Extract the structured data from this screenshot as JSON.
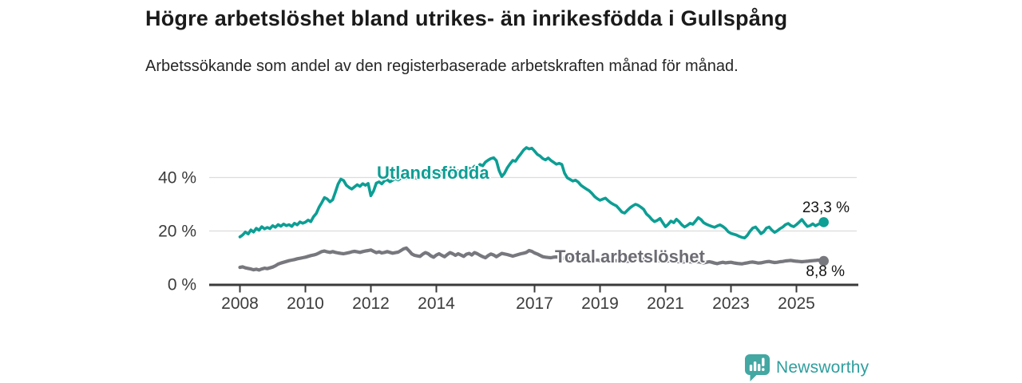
{
  "page": {
    "title": "Högre arbetslöshet bland utrikes- än inrikesfödda i Gullspång",
    "subtitle": "Arbetssökande som andel av den registerbaserade arbetskraften månad för månad."
  },
  "branding": {
    "name": "Newsworthy",
    "icon": "bar-chart-speech-bubble-icon",
    "icon_color": "#43a7a2",
    "text_color": "#2f9e9e"
  },
  "colors": {
    "foreign_born_line": "#0d9e94",
    "total_line": "#77777e",
    "grid": "#dcdcdc",
    "axis": "#3a3a3a",
    "axis_text": "#3c3c3c",
    "value_text": "#141414"
  },
  "chart_data": {
    "type": "line",
    "title": "Högre arbetslöshet bland utrikes- än inrikesfödda i Gullspång",
    "subtitle": "Arbetssökande som andel av den registerbaserade arbetskraften månad för månad.",
    "unit": "%",
    "grid": "horizontal",
    "legend_position": "inline-labels",
    "x_axis": {
      "range": [
        2007.06,
        2026.86
      ],
      "ticks": [
        2008,
        2010,
        2012,
        2014,
        2017,
        2019,
        2021,
        2023,
        2025
      ]
    },
    "y_axis": {
      "range": [
        0,
        53
      ],
      "ticks": [
        {
          "value": 0,
          "label": "0 %"
        },
        {
          "value": 20,
          "label": "20 %"
        },
        {
          "value": 40,
          "label": "40 %"
        }
      ]
    },
    "series": [
      {
        "name": "Utlandsfödda",
        "color": "#0d9e94",
        "start_year": 2008.0,
        "interval": "monthly",
        "end_value": 23.3,
        "end_label": "23,3 %",
        "values": [
          17.8,
          18.5,
          19.6,
          18.9,
          20.4,
          19.6,
          21.0,
          20.3,
          21.6,
          20.8,
          21.3,
          20.9,
          22.0,
          21.4,
          22.4,
          21.8,
          22.6,
          22.0,
          22.4,
          21.7,
          22.9,
          22.3,
          23.4,
          22.9,
          23.3,
          24.1,
          23.5,
          25.4,
          26.6,
          28.9,
          30.6,
          32.5,
          32.0,
          30.9,
          31.7,
          34.6,
          37.6,
          39.4,
          38.9,
          37.1,
          36.3,
          35.7,
          36.5,
          37.3,
          36.7,
          37.7,
          37.1,
          37.8,
          33.2,
          35.0,
          37.9,
          38.4,
          37.6,
          38.8,
          39.2,
          38.4,
          39.0,
          39.6,
          39.1,
          39.8,
          40.4,
          39.7,
          40.2,
          40.9,
          40.1,
          39.6,
          40.9,
          41.4,
          40.8,
          41.5,
          40.9,
          41.3,
          41.8,
          41.2,
          41.9,
          41.4,
          42.0,
          41.6,
          42.3,
          41.8,
          42.5,
          42.1,
          43.0,
          42.6,
          43.5,
          43.0,
          44.2,
          43.7,
          44.9,
          44.4,
          45.8,
          46.5,
          47.1,
          47.4,
          46.3,
          42.6,
          40.4,
          41.6,
          43.6,
          45.1,
          46.4,
          46.1,
          47.6,
          48.9,
          50.3,
          51.2,
          50.7,
          51.0,
          49.9,
          48.7,
          48.1,
          47.1,
          46.6,
          47.3,
          46.4,
          45.7,
          45.0,
          45.3,
          44.9,
          41.6,
          39.9,
          39.3,
          38.7,
          39.0,
          38.3,
          37.1,
          36.4,
          35.7,
          35.1,
          34.1,
          32.9,
          32.1,
          31.5,
          31.9,
          32.3,
          31.3,
          30.5,
          29.9,
          29.4,
          28.3,
          27.1,
          26.7,
          27.7,
          28.7,
          29.4,
          30.0,
          29.6,
          28.9,
          28.1,
          26.4,
          25.5,
          24.3,
          23.5,
          24.0,
          24.7,
          23.1,
          21.6,
          22.5,
          23.7,
          23.1,
          24.4,
          23.5,
          22.3,
          21.5,
          22.1,
          22.9,
          22.5,
          23.7,
          25.0,
          24.3,
          23.1,
          22.5,
          22.1,
          21.7,
          21.4,
          21.9,
          22.3,
          21.7,
          20.9,
          19.7,
          19.1,
          18.8,
          18.5,
          18.0,
          17.6,
          17.4,
          18.4,
          19.9,
          21.1,
          21.5,
          20.3,
          19.0,
          19.7,
          21.1,
          21.5,
          20.3,
          19.5,
          20.1,
          20.9,
          21.5,
          22.4,
          22.8,
          22.0,
          21.6,
          22.4,
          23.3,
          24.3,
          22.9,
          21.7,
          22.0,
          22.7,
          21.9,
          22.5,
          22.9,
          23.3
        ]
      },
      {
        "name": "Total arbetslöshet",
        "color": "#77777e",
        "start_year": 2008.0,
        "interval": "monthly",
        "end_value": 8.8,
        "end_label": "8,8 %",
        "values": [
          6.4,
          6.6,
          6.2,
          6.0,
          5.8,
          5.5,
          5.7,
          5.4,
          5.8,
          6.1,
          5.9,
          6.2,
          6.5,
          7.0,
          7.6,
          8.0,
          8.3,
          8.6,
          8.9,
          9.1,
          9.3,
          9.6,
          9.8,
          10.0,
          10.2,
          10.5,
          10.8,
          11.0,
          11.3,
          11.8,
          12.3,
          12.5,
          12.2,
          12.0,
          12.3,
          12.0,
          11.8,
          11.6,
          11.5,
          11.7,
          11.9,
          12.2,
          12.4,
          12.2,
          12.0,
          12.3,
          12.5,
          12.7,
          12.9,
          12.4,
          11.9,
          12.2,
          11.8,
          12.0,
          12.3,
          12.0,
          11.7,
          11.9,
          12.1,
          12.7,
          13.3,
          13.6,
          12.6,
          11.4,
          10.9,
          10.7,
          10.5,
          11.3,
          11.9,
          11.5,
          10.7,
          10.2,
          11.0,
          11.5,
          10.9,
          10.4,
          11.2,
          11.9,
          11.5,
          10.9,
          11.5,
          11.0,
          10.5,
          11.3,
          11.6,
          11.0,
          11.9,
          11.5,
          10.9,
          10.4,
          10.0,
          10.8,
          11.4,
          11.0,
          10.4,
          11.0,
          11.6,
          11.4,
          11.2,
          10.9,
          10.6,
          10.9,
          11.2,
          11.5,
          11.7,
          12.0,
          12.7,
          12.4,
          11.8,
          11.4,
          10.9,
          10.4,
          10.2,
          10.1,
          10.0,
          10.2,
          10.3,
          10.1,
          9.9,
          9.8,
          9.7,
          9.7,
          9.6,
          9.5,
          9.4,
          9.4,
          9.3,
          9.3,
          9.2,
          9.2,
          9.1,
          9.1,
          9.0,
          9.1,
          9.1,
          9.0,
          9.0,
          8.9,
          8.9,
          8.8,
          8.8,
          8.7,
          8.7,
          8.8,
          8.9,
          9.1,
          9.4,
          9.6,
          9.5,
          9.4,
          9.3,
          9.1,
          9.0,
          8.9,
          8.8,
          8.8,
          8.7,
          8.8,
          8.9,
          8.8,
          8.6,
          8.5,
          8.4,
          8.5,
          8.6,
          8.5,
          8.3,
          8.4,
          8.5,
          8.3,
          8.1,
          8.3,
          8.5,
          8.3,
          8.0,
          7.8,
          8.1,
          8.3,
          8.1,
          8.2,
          8.3,
          8.1,
          7.9,
          7.8,
          7.7,
          7.9,
          8.1,
          8.3,
          8.4,
          8.2,
          8.0,
          8.1,
          8.3,
          8.5,
          8.6,
          8.4,
          8.2,
          8.3,
          8.5,
          8.6,
          8.8,
          8.9,
          9.0,
          8.8,
          8.7,
          8.6,
          8.5,
          8.6,
          8.7,
          8.8,
          8.9,
          9.0,
          9.1,
          9.0,
          8.8
        ]
      }
    ]
  }
}
